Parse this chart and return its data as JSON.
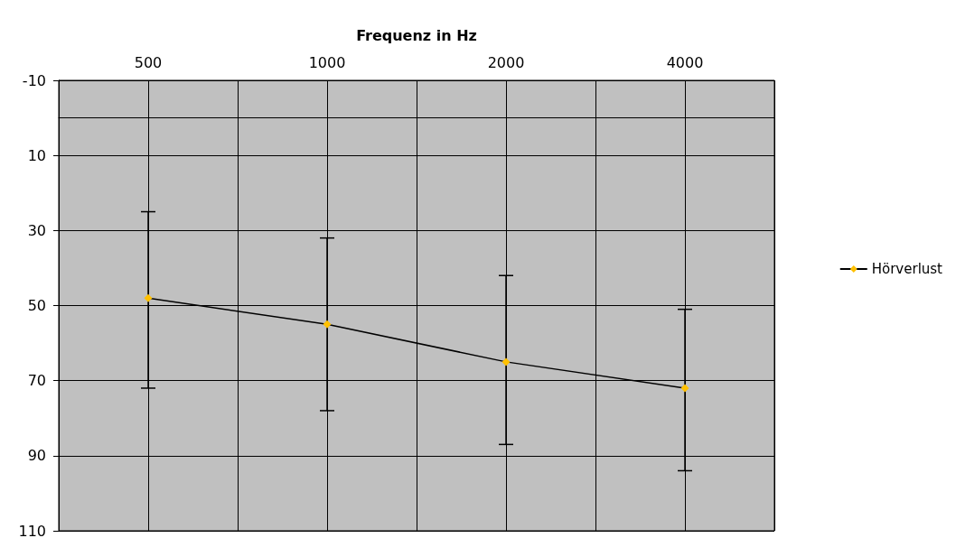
{
  "chart_data": {
    "type": "line",
    "xlabel": "Frequenz in Hz",
    "categories": [
      "500",
      "1000",
      "2000",
      "4000"
    ],
    "series": [
      {
        "name": "Hörverlust",
        "color": "#ffc000",
        "values": [
          48,
          55,
          65,
          72
        ],
        "errors": [
          [
            25,
            72
          ],
          [
            32,
            78
          ],
          [
            42,
            87
          ],
          [
            51,
            94
          ]
        ]
      }
    ],
    "ylim": [
      110,
      -10
    ],
    "yticks": [
      -10,
      10,
      30,
      50,
      70,
      90,
      110
    ],
    "grid": true,
    "legend": "right",
    "marker": "diamond",
    "line_style": "solid"
  }
}
